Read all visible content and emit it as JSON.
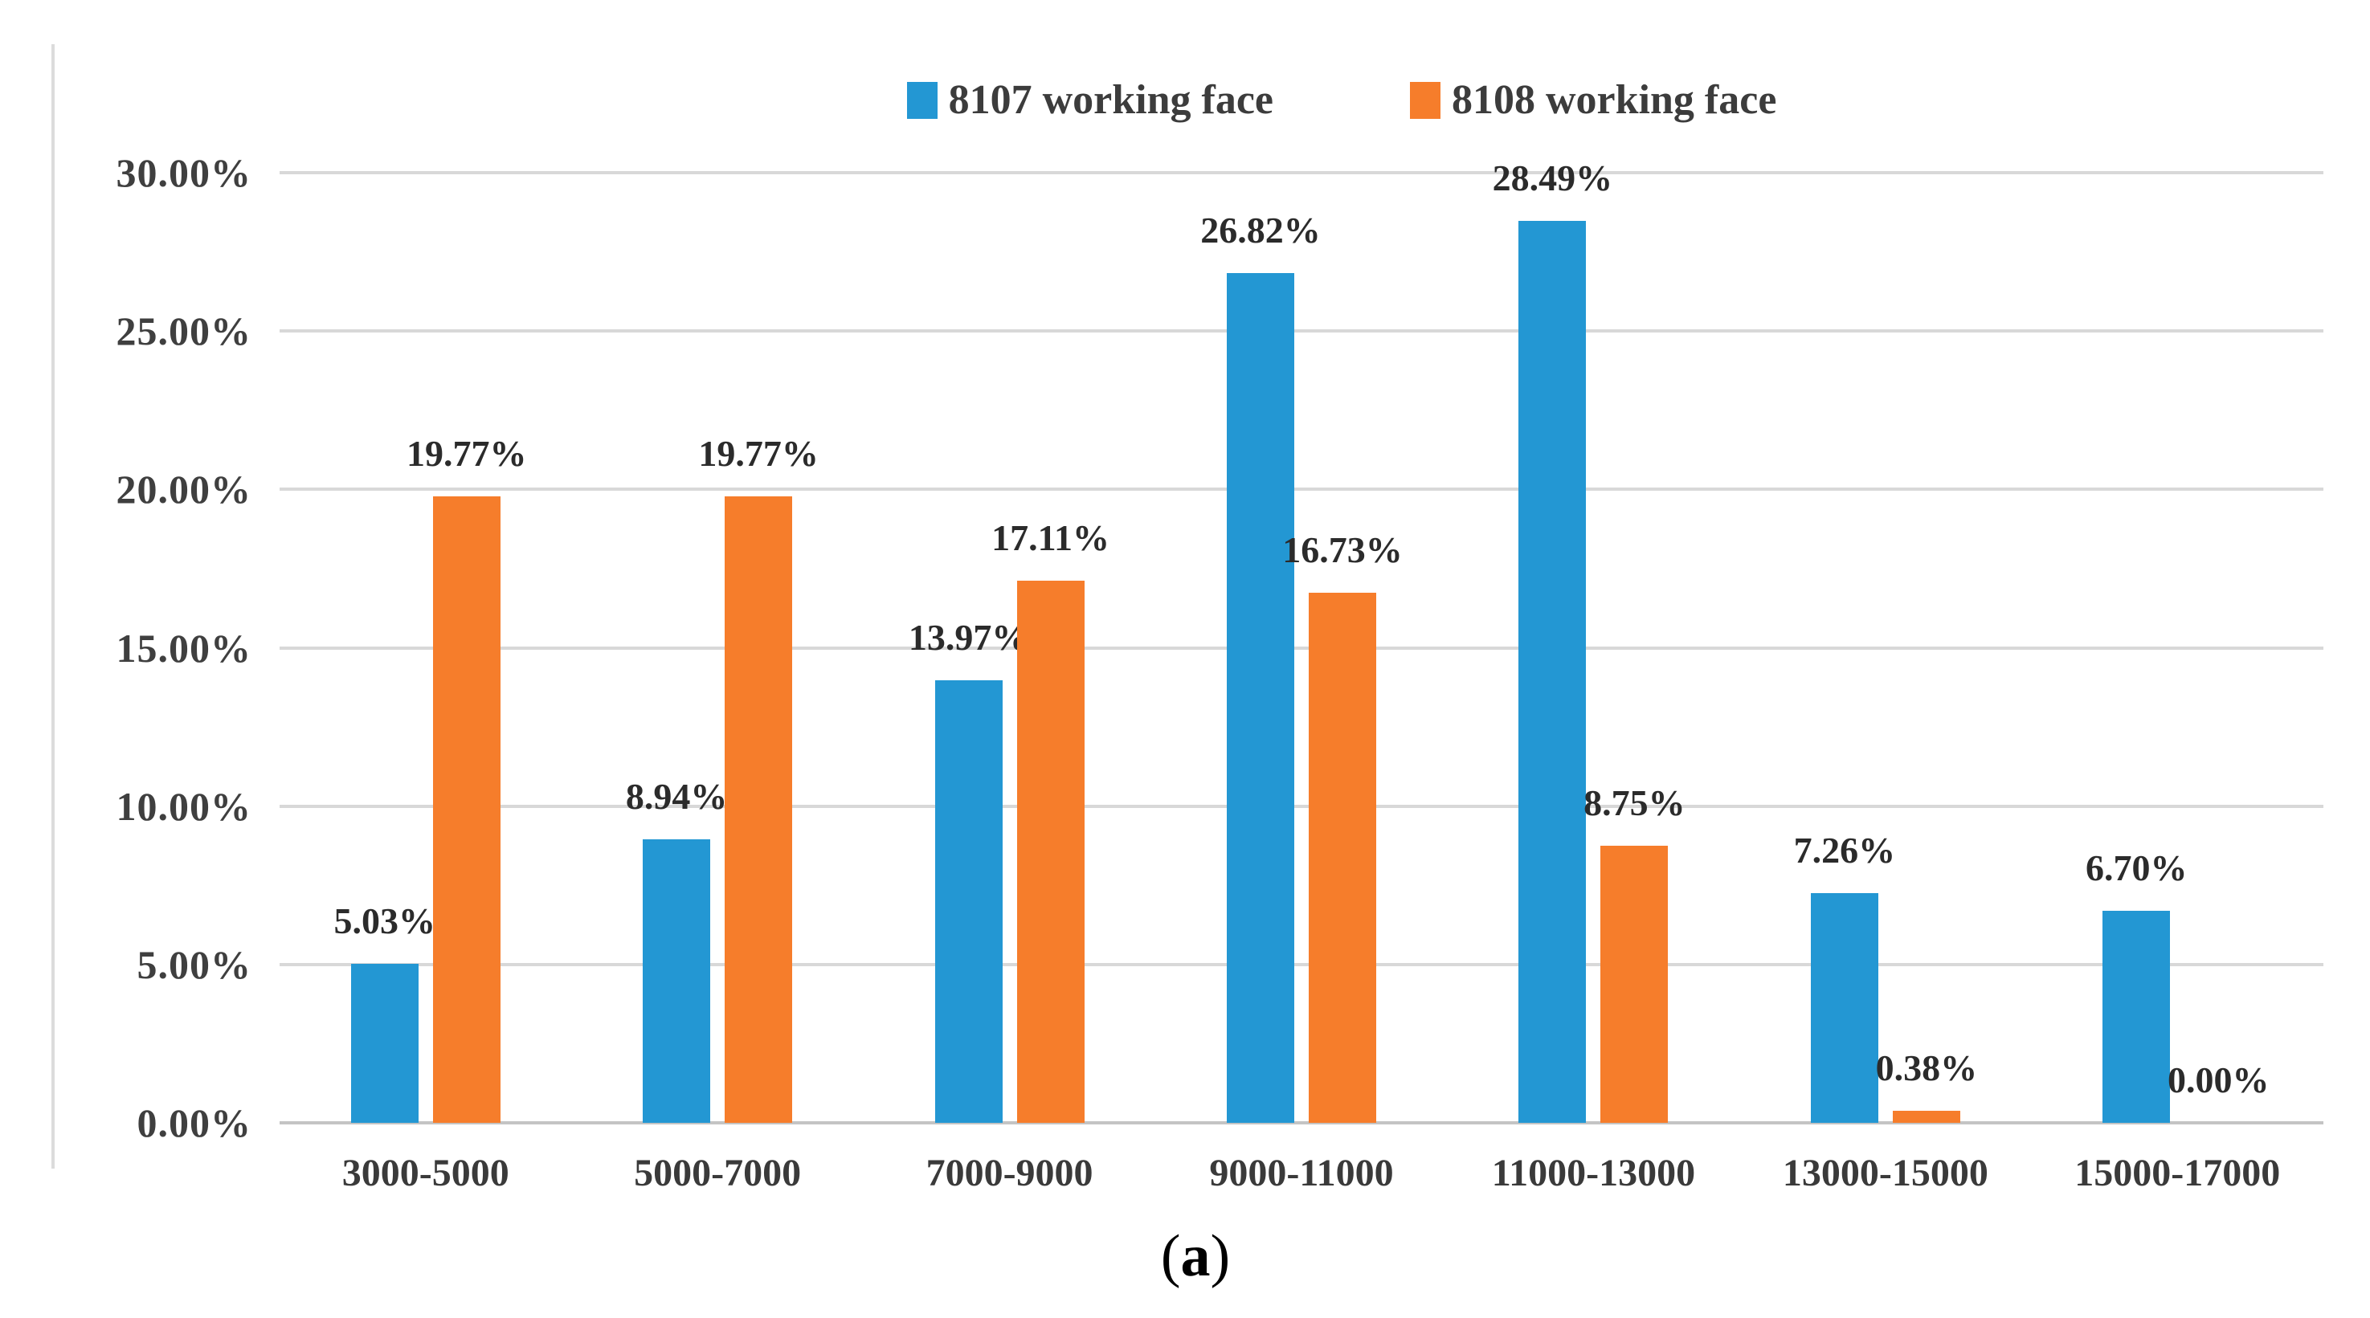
{
  "figure": {
    "panel_label": {
      "open": "(",
      "letter": "a",
      "close": ")"
    }
  },
  "legend": {
    "items": [
      {
        "label": "8107 working face",
        "color": "#2397d3"
      },
      {
        "label": "8108 working face",
        "color": "#f67d2b"
      }
    ]
  },
  "chart_data": {
    "type": "bar",
    "title": "",
    "xlabel": "",
    "ylabel": "",
    "categories": [
      "3000-5000",
      "5000-7000",
      "7000-9000",
      "9000-11000",
      "11000-13000",
      "13000-15000",
      "15000-17000"
    ],
    "series": [
      {
        "name": "8107 working face",
        "color": "#2397d3",
        "values": [
          5.03,
          8.94,
          13.97,
          26.82,
          28.49,
          7.26,
          6.7
        ],
        "labels": [
          "5.03%",
          "8.94%",
          "13.97%",
          "26.82%",
          "28.49%",
          "7.26%",
          "6.70%"
        ]
      },
      {
        "name": "8108 working face",
        "color": "#f67d2b",
        "values": [
          19.77,
          19.77,
          17.11,
          16.73,
          8.75,
          0.38,
          0.0
        ],
        "labels": [
          "19.77%",
          "19.77%",
          "17.11%",
          "16.73%",
          "8.75%",
          "0.38%",
          "0.00%"
        ]
      }
    ],
    "ylim": [
      0,
      30
    ],
    "yticks": [
      "30.00%",
      "25.00%",
      "20.00%",
      "15.00%",
      "10.00%",
      "5.00%",
      "0.00%"
    ],
    "grid": true,
    "grid_color": "#d8d8d8",
    "axis_color": "#c4c4c4",
    "legend_position": "top-center"
  }
}
